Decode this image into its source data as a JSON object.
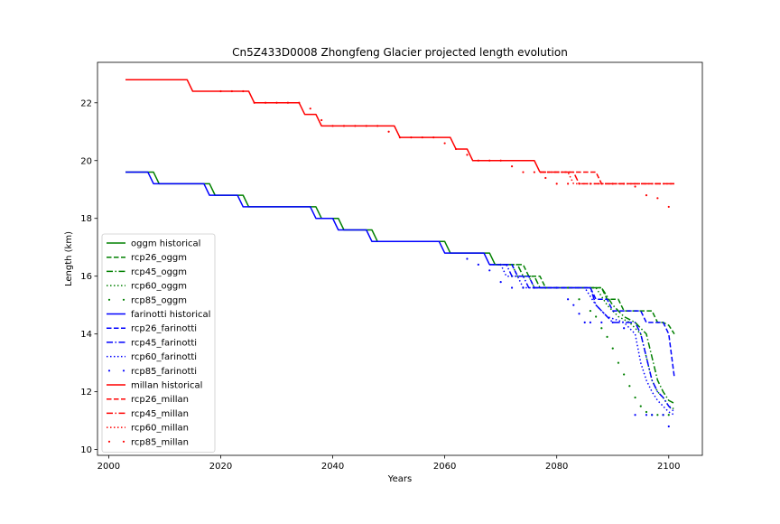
{
  "chart_data": {
    "type": "line",
    "title": "Cn5Z433D0008 Zhongfeng Glacier projected length evolution",
    "xlabel": "Years",
    "ylabel": "Length (km)",
    "xlim": [
      1998,
      2106
    ],
    "ylim": [
      9.8,
      23.4
    ],
    "xticks": [
      2000,
      2020,
      2040,
      2060,
      2080,
      2100
    ],
    "yticks": [
      10,
      12,
      14,
      16,
      18,
      20,
      22
    ],
    "grid": false,
    "legend_position": "lower-left",
    "colors": {
      "oggm": "#008000",
      "farinotti": "#0000ff",
      "millan": "#ff0000"
    },
    "series": [
      {
        "name": "oggm historical",
        "style": "solid",
        "color": "#008000",
        "x": [
          2003,
          2008,
          2009,
          2018,
          2019,
          2024,
          2025,
          2037,
          2038,
          2041,
          2042,
          2047,
          2048,
          2060,
          2061,
          2068,
          2069
        ],
        "y": [
          19.6,
          19.6,
          19.2,
          19.2,
          18.8,
          18.8,
          18.4,
          18.4,
          18.0,
          18.0,
          17.6,
          17.6,
          17.2,
          17.2,
          16.8,
          16.8,
          16.4
        ]
      },
      {
        "name": "rcp26_oggm",
        "style": "dash",
        "color": "#008000",
        "x": [
          2069,
          2074,
          2075,
          2077,
          2078,
          2088,
          2089,
          2091,
          2092,
          2097,
          2098,
          2099,
          2100,
          2101
        ],
        "y": [
          16.4,
          16.4,
          16.0,
          16.0,
          15.6,
          15.6,
          15.2,
          15.2,
          14.8,
          14.8,
          14.4,
          14.4,
          14.3,
          14.0
        ]
      },
      {
        "name": "rcp45_oggm",
        "style": "dashdot",
        "color": "#008000",
        "x": [
          2069,
          2073,
          2074,
          2076,
          2077,
          2088,
          2090,
          2092,
          2094,
          2096,
          2097,
          2098,
          2099,
          2100,
          2101
        ],
        "y": [
          16.4,
          16.4,
          16.0,
          16.0,
          15.6,
          15.6,
          15.0,
          14.6,
          14.4,
          14.0,
          13.2,
          12.4,
          12.0,
          11.7,
          11.6
        ]
      },
      {
        "name": "rcp60_oggm",
        "style": "dot",
        "color": "#008000",
        "x": [
          2069,
          2072,
          2073,
          2075,
          2076,
          2087,
          2089,
          2091,
          2093,
          2095,
          2096,
          2097,
          2098,
          2099,
          2100,
          2101
        ],
        "y": [
          16.4,
          16.4,
          16.0,
          16.0,
          15.6,
          15.6,
          15.0,
          14.6,
          14.4,
          14.0,
          13.2,
          12.4,
          12.0,
          11.8,
          11.5,
          11.4
        ]
      },
      {
        "name": "rcp85_oggm",
        "style": "points",
        "color": "#008000",
        "x": [
          2070,
          2072,
          2074,
          2076,
          2078,
          2080,
          2082,
          2084,
          2086,
          2087,
          2088,
          2089,
          2090,
          2091,
          2092,
          2093,
          2094,
          2095,
          2096,
          2097,
          2098,
          2099,
          2100
        ],
        "y": [
          16.4,
          16.0,
          15.6,
          15.6,
          15.6,
          15.6,
          15.6,
          15.2,
          14.8,
          14.6,
          14.2,
          13.9,
          13.5,
          13.0,
          12.6,
          12.2,
          11.8,
          11.5,
          11.3,
          11.2,
          11.2,
          11.2,
          11.2
        ]
      },
      {
        "name": "farinotti historical",
        "style": "solid",
        "color": "#0000ff",
        "x": [
          2003,
          2007,
          2008,
          2017,
          2018,
          2023,
          2024,
          2036,
          2037,
          2040,
          2041,
          2046,
          2047,
          2059,
          2060,
          2067,
          2068
        ],
        "y": [
          19.6,
          19.6,
          19.2,
          19.2,
          18.8,
          18.8,
          18.4,
          18.4,
          18.0,
          18.0,
          17.6,
          17.6,
          17.2,
          17.2,
          16.8,
          16.8,
          16.4
        ]
      },
      {
        "name": "rcp26_farinotti",
        "style": "dash",
        "color": "#0000ff",
        "x": [
          2068,
          2072,
          2073,
          2075,
          2076,
          2086,
          2087,
          2089,
          2090,
          2095,
          2096,
          2099,
          2100,
          2101
        ],
        "y": [
          16.4,
          16.4,
          16.0,
          16.0,
          15.6,
          15.6,
          15.2,
          15.2,
          14.8,
          14.8,
          14.4,
          14.4,
          14.0,
          12.5
        ]
      },
      {
        "name": "rcp45_farinotti",
        "style": "dashdot",
        "color": "#0000ff",
        "x": [
          2068,
          2071,
          2072,
          2074,
          2075,
          2086,
          2087,
          2089,
          2090,
          2094,
          2095,
          2096,
          2097,
          2098,
          2099,
          2100,
          2101
        ],
        "y": [
          16.4,
          16.4,
          16.0,
          16.0,
          15.6,
          15.6,
          15.0,
          14.6,
          14.4,
          14.4,
          14.0,
          13.2,
          12.4,
          12.0,
          11.8,
          11.5,
          11.3
        ]
      },
      {
        "name": "rcp60_farinotti",
        "style": "dot",
        "color": "#0000ff",
        "x": [
          2068,
          2070,
          2071,
          2073,
          2074,
          2085,
          2087,
          2089,
          2092,
          2093,
          2094,
          2095,
          2096,
          2097,
          2098,
          2099,
          2100,
          2101
        ],
        "y": [
          16.4,
          16.4,
          16.0,
          16.0,
          15.6,
          15.6,
          15.0,
          14.6,
          14.4,
          14.2,
          14.0,
          13.0,
          12.4,
          12.0,
          11.7,
          11.5,
          11.3,
          11.2
        ]
      },
      {
        "name": "rcp85_farinotti",
        "style": "points",
        "color": "#0000ff",
        "x": [
          2064,
          2066,
          2068,
          2070,
          2072,
          2074,
          2076,
          2078,
          2080,
          2082,
          2083,
          2084,
          2085,
          2086,
          2088,
          2090,
          2092,
          2094,
          2096,
          2097,
          2099,
          2100
        ],
        "y": [
          16.6,
          16.4,
          16.2,
          15.8,
          15.6,
          15.6,
          15.6,
          15.6,
          15.6,
          15.2,
          15.0,
          14.7,
          14.4,
          14.4,
          14.4,
          14.4,
          14.2,
          11.2,
          11.2,
          11.2,
          11.2,
          10.8
        ]
      },
      {
        "name": "millan historical",
        "style": "solid",
        "color": "#ff0000",
        "x": [
          2003,
          2014,
          2015,
          2025,
          2026,
          2034,
          2035,
          2037,
          2038,
          2051,
          2052,
          2061,
          2062,
          2064,
          2065,
          2073,
          2074,
          2076,
          2077
        ],
        "y": [
          22.8,
          22.8,
          22.4,
          22.4,
          22.0,
          22.0,
          21.6,
          21.6,
          21.2,
          21.2,
          20.8,
          20.8,
          20.4,
          20.4,
          20.0,
          20.0,
          20.0,
          20.0,
          19.6
        ]
      },
      {
        "name": "rcp26_millan",
        "style": "dash",
        "color": "#ff0000",
        "x": [
          2077,
          2087,
          2088,
          2101
        ],
        "y": [
          19.6,
          19.6,
          19.2,
          19.2
        ]
      },
      {
        "name": "rcp45_millan",
        "style": "dashdot",
        "color": "#ff0000",
        "x": [
          2077,
          2083,
          2084,
          2101
        ],
        "y": [
          19.6,
          19.6,
          19.2,
          19.2
        ]
      },
      {
        "name": "rcp60_millan",
        "style": "dot",
        "color": "#ff0000",
        "x": [
          2077,
          2082,
          2083,
          2101
        ],
        "y": [
          19.6,
          19.6,
          19.2,
          19.2
        ]
      },
      {
        "name": "rcp85_millan",
        "style": "points",
        "color": "#ff0000",
        "x": [
          2020,
          2022,
          2024,
          2026,
          2028,
          2030,
          2032,
          2034,
          2036,
          2038,
          2040,
          2042,
          2044,
          2046,
          2048,
          2050,
          2052,
          2054,
          2056,
          2058,
          2060,
          2062,
          2064,
          2066,
          2068,
          2070,
          2072,
          2074,
          2076,
          2078,
          2080,
          2082,
          2084,
          2086,
          2088,
          2090,
          2092,
          2094,
          2096,
          2098,
          2100
        ],
        "y": [
          22.4,
          22.4,
          22.4,
          22.0,
          22.0,
          22.0,
          22.0,
          22.0,
          21.8,
          21.4,
          21.2,
          21.2,
          21.2,
          21.2,
          21.2,
          21.0,
          20.8,
          20.8,
          20.8,
          20.8,
          20.6,
          20.4,
          20.2,
          20.0,
          20.0,
          20.0,
          19.8,
          19.6,
          19.6,
          19.4,
          19.2,
          19.2,
          19.2,
          19.2,
          19.2,
          19.2,
          19.2,
          19.1,
          18.8,
          18.7,
          18.4
        ]
      }
    ]
  }
}
